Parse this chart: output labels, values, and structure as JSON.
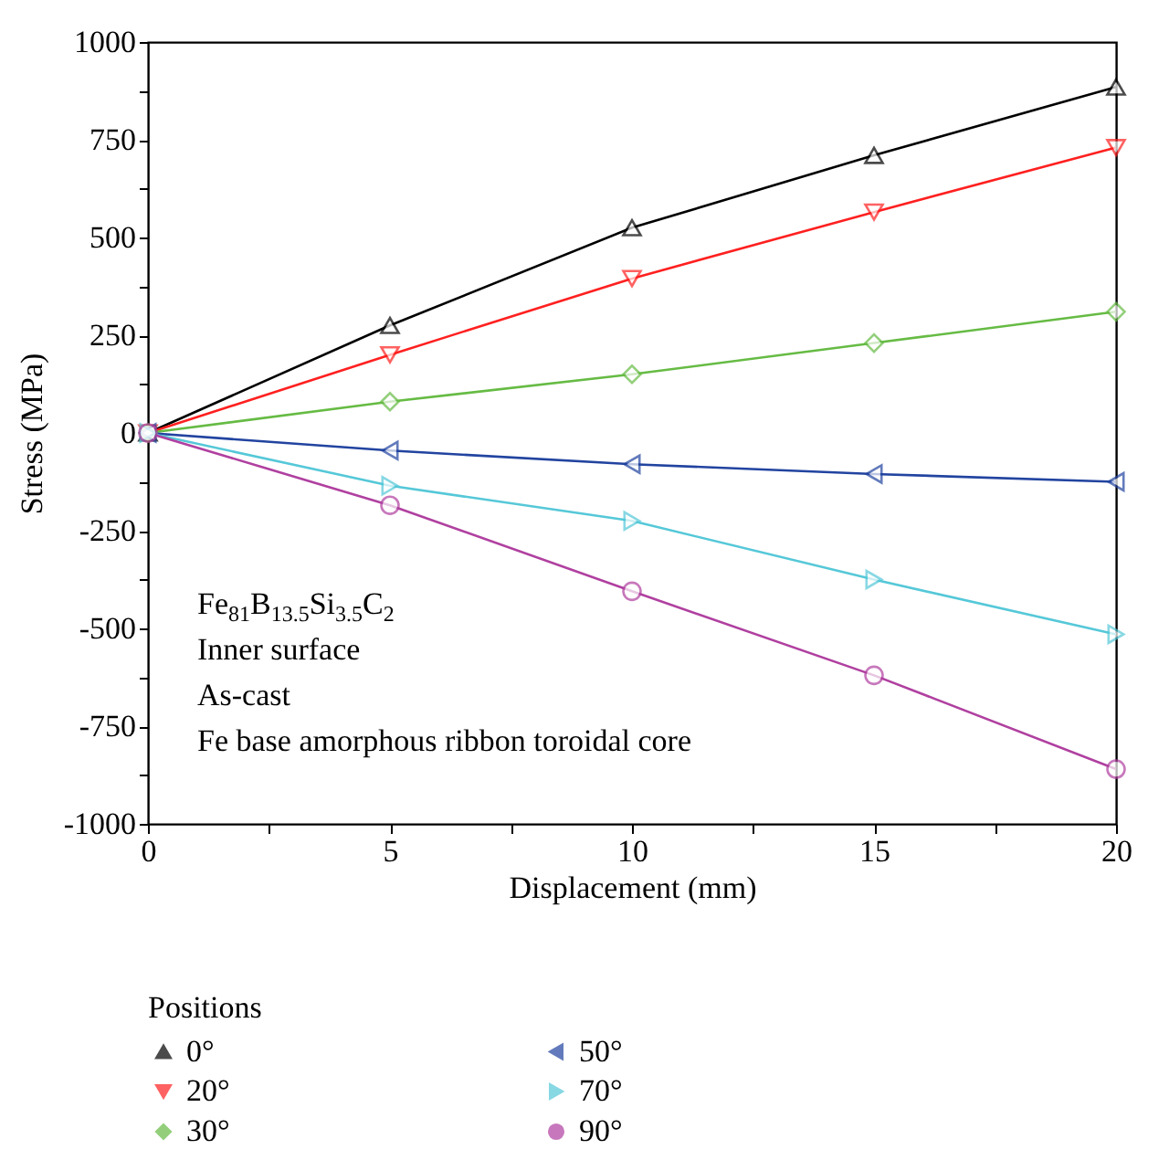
{
  "chart_data": {
    "type": "line",
    "xlabel": "Displacement (mm)",
    "ylabel": "Stress (MPa)",
    "legend_title": "Positions",
    "legend": "bottom",
    "x": [
      0,
      5,
      10,
      15,
      20
    ],
    "xlim": [
      0,
      20
    ],
    "xticks": [
      0,
      {
        "value": 2.5,
        "label": null
      },
      5,
      {
        "value": 7.5,
        "label": null
      },
      10,
      {
        "value": 12.5,
        "label": null
      },
      15,
      {
        "value": 17.5,
        "label": null
      },
      20
    ],
    "ylim": [
      -1000,
      1000
    ],
    "yticks": [
      -1000,
      {
        "value": -875,
        "label": null
      },
      -750,
      {
        "value": -625,
        "label": null
      },
      -500,
      {
        "value": -375,
        "label": null
      },
      -250,
      {
        "value": -125,
        "label": null
      },
      0,
      {
        "value": 125,
        "label": null
      },
      250,
      {
        "value": 375,
        "label": null
      },
      500,
      {
        "value": 625,
        "label": null
      },
      750,
      {
        "value": 875,
        "label": null
      },
      1000
    ],
    "grid": false,
    "line_style": "solid",
    "annotations": [
      "Fe$_{81}$B$_{13.5}$Si$_{3.5}$C$_{2}$",
      "Inner surface",
      "As-cast",
      "Fe base amorphous ribbon toroidal core"
    ],
    "series": [
      {
        "name": "0°",
        "color": "#000000",
        "marker": "triangle-up",
        "values": [
          0,
          275,
          525,
          710,
          885
        ]
      },
      {
        "name": "20°",
        "color": "#ff2020",
        "marker": "triangle-down",
        "values": [
          0,
          200,
          395,
          565,
          730
        ]
      },
      {
        "name": "30°",
        "color": "#66bb44",
        "marker": "diamond",
        "values": [
          0,
          80,
          150,
          230,
          310
        ]
      },
      {
        "name": "50°",
        "color": "#2244a0",
        "marker": "triangle-left",
        "values": [
          0,
          -45,
          -80,
          -105,
          -125
        ]
      },
      {
        "name": "70°",
        "color": "#55c8d8",
        "marker": "triangle-right",
        "values": [
          0,
          -135,
          -225,
          -375,
          -515
        ]
      },
      {
        "name": "90°",
        "color": "#b040a0",
        "marker": "circle",
        "values": [
          0,
          -185,
          -405,
          -620,
          -860
        ]
      }
    ]
  }
}
